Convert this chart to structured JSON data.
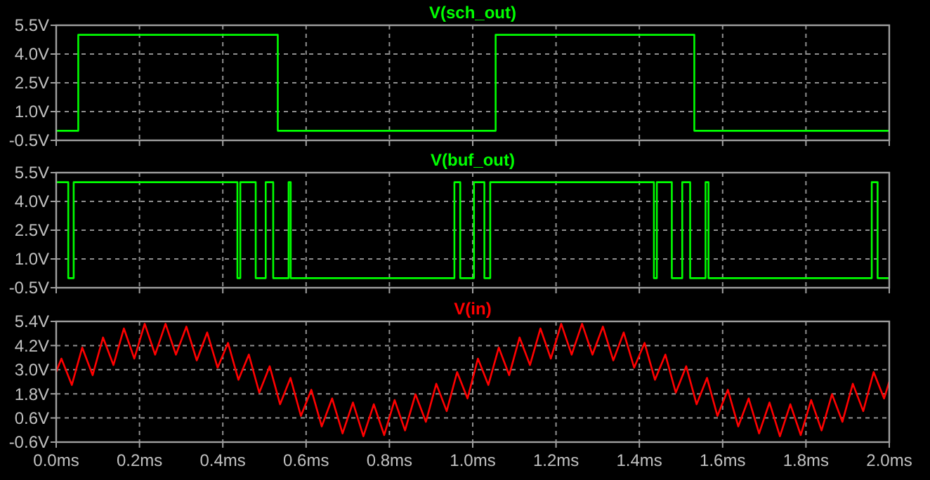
{
  "chart_data": [
    {
      "type": "step",
      "title": "V(sch_out)",
      "xlim": [
        0,
        2
      ],
      "xticks": [
        {
          "value": 0,
          "label": null
        },
        {
          "value": 0.2,
          "label": null
        },
        {
          "value": 0.4,
          "label": null
        },
        {
          "value": 0.6,
          "label": null
        },
        {
          "value": 0.8,
          "label": null
        },
        {
          "value": 1,
          "label": null
        },
        {
          "value": 1.2,
          "label": null
        },
        {
          "value": 1.4,
          "label": null
        },
        {
          "value": 1.6,
          "label": null
        },
        {
          "value": 1.8,
          "label": null
        },
        {
          "value": 2,
          "label": null
        }
      ],
      "ylim": [
        -0.5,
        5.5
      ],
      "yticks": [
        {
          "value": -0.5,
          "label": "-0.5V"
        },
        {
          "value": 1,
          "label": "1.0V"
        },
        {
          "value": 2.5,
          "label": "2.5V"
        },
        {
          "value": 4,
          "label": "4.0V"
        },
        {
          "value": 5.5,
          "label": "5.5V"
        }
      ],
      "grid": true,
      "tick_labels": "y",
      "series": [
        {
          "color": "#00ff00",
          "x": [
            0,
            0.053,
            0.532,
            1.055,
            1.532,
            2
          ],
          "values": [
            0,
            5,
            0,
            5,
            0,
            0
          ]
        }
      ]
    },
    {
      "type": "step",
      "title": "V(buf_out)",
      "xlim": [
        0,
        2
      ],
      "xticks": [
        {
          "value": 0,
          "label": null
        },
        {
          "value": 0.2,
          "label": null
        },
        {
          "value": 0.4,
          "label": null
        },
        {
          "value": 0.6,
          "label": null
        },
        {
          "value": 0.8,
          "label": null
        },
        {
          "value": 1,
          "label": null
        },
        {
          "value": 1.2,
          "label": null
        },
        {
          "value": 1.4,
          "label": null
        },
        {
          "value": 1.6,
          "label": null
        },
        {
          "value": 1.8,
          "label": null
        },
        {
          "value": 2,
          "label": null
        }
      ],
      "ylim": [
        -0.5,
        5.5
      ],
      "yticks": [
        {
          "value": -0.5,
          "label": "-0.5V"
        },
        {
          "value": 1,
          "label": "1.0V"
        },
        {
          "value": 2.5,
          "label": "2.5V"
        },
        {
          "value": 4,
          "label": "4.0V"
        },
        {
          "value": 5.5,
          "label": "5.5V"
        }
      ],
      "grid": true,
      "tick_labels": "y",
      "series": [
        {
          "color": "#00ff00",
          "x": [
            0,
            0.029,
            0.042,
            0.435,
            0.442,
            0.479,
            0.503,
            0.521,
            0.558,
            0.563,
            0.956,
            0.97,
            1.003,
            1.028,
            1.042,
            1.435,
            1.442,
            1.478,
            1.503,
            1.522,
            1.559,
            1.566,
            1.958,
            1.972,
            2
          ],
          "values": [
            5,
            0,
            5,
            0,
            5,
            0,
            5,
            0,
            5,
            0,
            5,
            0,
            5,
            0,
            5,
            0,
            5,
            0,
            5,
            0,
            5,
            0,
            5,
            0,
            0
          ]
        }
      ]
    },
    {
      "type": "line",
      "title": "V(in)",
      "xlim": [
        0,
        2
      ],
      "xticks": [
        {
          "value": 0,
          "label": "0.0ms"
        },
        {
          "value": 0.2,
          "label": "0.2ms"
        },
        {
          "value": 0.4,
          "label": "0.4ms"
        },
        {
          "value": 0.6,
          "label": "0.6ms"
        },
        {
          "value": 0.8,
          "label": "0.8ms"
        },
        {
          "value": 1,
          "label": "1.0ms"
        },
        {
          "value": 1.2,
          "label": "1.2ms"
        },
        {
          "value": 1.4,
          "label": "1.4ms"
        },
        {
          "value": 1.6,
          "label": "1.6ms"
        },
        {
          "value": 1.8,
          "label": "1.8ms"
        },
        {
          "value": 2,
          "label": "2.0ms"
        }
      ],
      "ylim": [
        -0.6,
        5.4
      ],
      "yticks": [
        {
          "value": -0.6,
          "label": "-0.6V"
        },
        {
          "value": 0.6,
          "label": "0.6V"
        },
        {
          "value": 1.8,
          "label": "1.8V"
        },
        {
          "value": 3,
          "label": "3.0V"
        },
        {
          "value": 4.2,
          "label": "4.2V"
        },
        {
          "value": 5.4,
          "label": "5.4V"
        }
      ],
      "grid": true,
      "series": [
        {
          "color": "#ff0000",
          "x": [
            0,
            0.0125,
            0.0375,
            0.0625,
            0.0875,
            0.1125,
            0.1375,
            0.1625,
            0.1875,
            0.2125,
            0.2375,
            0.2625,
            0.2875,
            0.3125,
            0.3375,
            0.3625,
            0.3875,
            0.4125,
            0.4375,
            0.4625,
            0.4875,
            0.5125,
            0.5375,
            0.5625,
            0.5875,
            0.6125,
            0.6375,
            0.6625,
            0.6875,
            0.7125,
            0.7375,
            0.7625,
            0.7875,
            0.8125,
            0.8375,
            0.8625,
            0.8875,
            0.9125,
            0.9375,
            0.9625,
            0.9875,
            1.0125,
            1.0375,
            1.0625,
            1.0875,
            1.1125,
            1.1375,
            1.1625,
            1.1875,
            1.2125,
            1.2375,
            1.2625,
            1.2875,
            1.3125,
            1.3375,
            1.3625,
            1.3875,
            1.4125,
            1.4375,
            1.4625,
            1.4875,
            1.5125,
            1.5375,
            1.5625,
            1.5875,
            1.6125,
            1.6375,
            1.6625,
            1.6875,
            1.7125,
            1.7375,
            1.7625,
            1.7875,
            1.8125,
            1.8375,
            1.8625,
            1.8875,
            1.9125,
            1.9375,
            1.9625,
            1.9875,
            2
          ],
          "values": [
            2.9,
            3.55,
            2.24,
            4.1,
            2.73,
            4.6,
            3.23,
            5.05,
            3.55,
            5.28,
            3.75,
            5.28,
            3.75,
            5.14,
            3.46,
            4.85,
            3.1,
            4.33,
            2.5,
            3.75,
            1.86,
            3.17,
            1.28,
            2.59,
            0.7,
            2.0,
            0.18,
            1.57,
            -0.17,
            1.37,
            -0.31,
            1.28,
            -0.25,
            1.49,
            -0.02,
            1.78,
            0.41,
            2.3,
            0.94,
            2.88,
            1.57,
            3.55,
            2.24,
            4.1,
            2.73,
            4.6,
            3.23,
            5.05,
            3.55,
            5.28,
            3.75,
            5.28,
            3.75,
            5.14,
            3.46,
            4.85,
            3.1,
            4.33,
            2.5,
            3.75,
            1.86,
            3.17,
            1.28,
            2.59,
            0.7,
            2.0,
            0.18,
            1.57,
            -0.17,
            1.37,
            -0.31,
            1.28,
            -0.25,
            1.49,
            -0.02,
            1.78,
            0.41,
            2.3,
            0.94,
            2.88,
            1.57,
            2.4
          ]
        }
      ]
    }
  ]
}
